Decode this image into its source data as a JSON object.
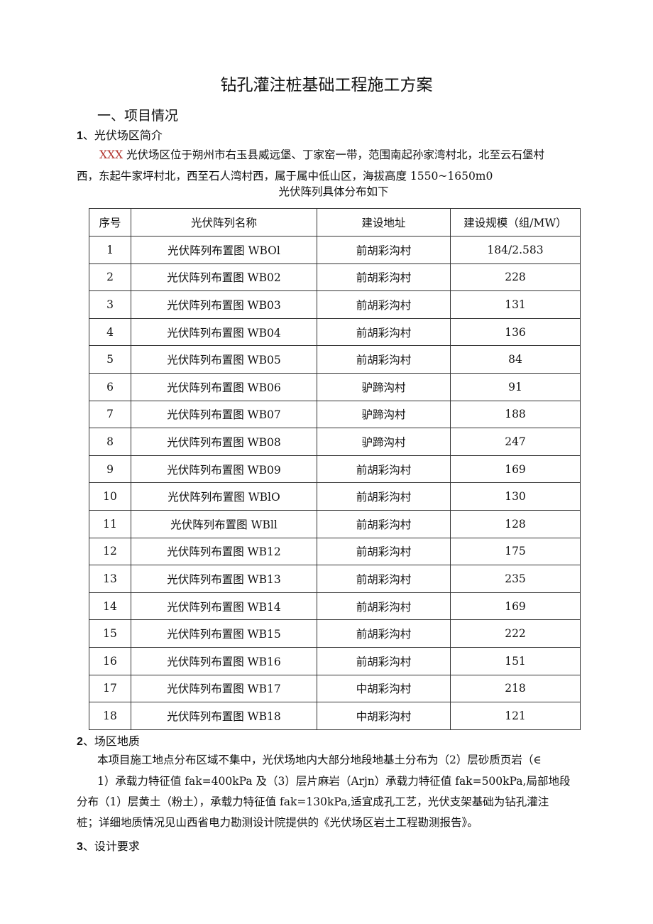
{
  "title": "钻孔灌注桩基础工程施工方案",
  "section1": "一、项目情况",
  "sub1": {
    "num": "1",
    "label": "、光伏场区简介"
  },
  "intro": {
    "highlight": "XXX",
    "line1": "光伏场区位于朔州市右玉县威远堡、丁家窑一带，范围南起孙家湾村北，北至云石堡村",
    "line2": "西，东起牛家坪村北，西至石人湾村西，属于属中低山区，海拔高度 1550~1650m0"
  },
  "table_caption": "光伏阵列具体分布如下",
  "table": {
    "headers": [
      "序号",
      "光伏阵列名称",
      "建设地址",
      "建设规模（组/MW）"
    ],
    "rows": [
      [
        "1",
        "光伏阵列布置图 WBOl",
        "前胡彩沟村",
        "184/2.583"
      ],
      [
        "2",
        "光伏阵列布置图 WB02",
        "前胡彩沟村",
        "228"
      ],
      [
        "3",
        "光伏阵列布置图 WB03",
        "前胡彩沟村",
        "131"
      ],
      [
        "4",
        "光伏阵列布置图 WB04",
        "前胡彩沟村",
        "136"
      ],
      [
        "5",
        "光伏阵列布置图 WB05",
        "前胡彩沟村",
        "84"
      ],
      [
        "6",
        "光伏阵列布置图 WB06",
        "驴蹄沟村",
        "91"
      ],
      [
        "7",
        "光伏阵列布置图 WB07",
        "驴蹄沟村",
        "188"
      ],
      [
        "8",
        "光伏阵列布置图 WB08",
        "驴蹄沟村",
        "247"
      ],
      [
        "9",
        "光伏阵列布置图 WB09",
        "前胡彩沟村",
        "169"
      ],
      [
        "10",
        "光伏阵列布置图 WBlO",
        "前胡彩沟村",
        "130"
      ],
      [
        "11",
        "光伏阵列布置图 WBll",
        "前胡彩沟村",
        "128"
      ],
      [
        "12",
        "光伏阵列布置图 WB12",
        "前胡彩沟村",
        "175"
      ],
      [
        "13",
        "光伏阵列布置图 WB13",
        "前胡彩沟村",
        "235"
      ],
      [
        "14",
        "光伏阵列布置图 WB14",
        "前胡彩沟村",
        "169"
      ],
      [
        "15",
        "光伏阵列布置图 WB15",
        "前胡彩沟村",
        "222"
      ],
      [
        "16",
        "光伏阵列布置图 WB16",
        "前胡彩沟村",
        "151"
      ],
      [
        "17",
        "光伏阵列布置图 WB17",
        "中胡彩沟村",
        "218"
      ],
      [
        "18",
        "光伏阵列布置图 WB18",
        "中胡彩沟村",
        "121"
      ]
    ]
  },
  "sub2": {
    "num": "2",
    "label": "、场区地质"
  },
  "geology": {
    "line1": "本项目施工地点分布区域不集中，光伏场地内大部分地段地基土分布为（2）层砂质页岩（∈",
    "line2": "1）承载力特征值 fak=400kPa 及（3）层片麻岩（Arjn）承载力特征值 fak=500kPa,局部地段",
    "line3": "分布（1）层黄土（粉土），承载力特征值 fak=130kPa,适宜成孔工艺，光伏支架基础为钻孔灌注",
    "line4": "桩；详细地质情况见山西省电力勘测设计院提供的《光伏场区岩土工程勘测报告》。"
  },
  "sub3": {
    "num": "3",
    "label": "、设计要求"
  }
}
